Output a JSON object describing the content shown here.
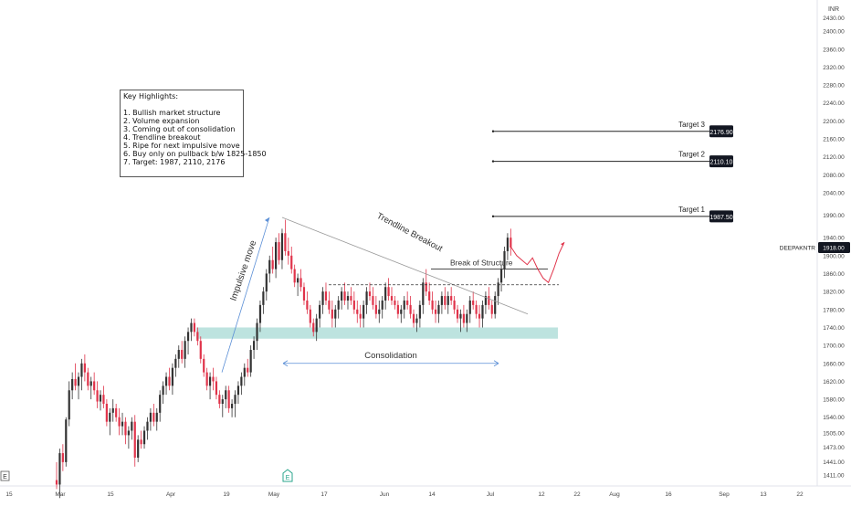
{
  "chart_data": {
    "type": "candlestick",
    "currency": "INR",
    "symbol": "DEEPAKNTR",
    "last_price": "1918.00",
    "price_scale_ticks": [
      "1411.00",
      "1441.00",
      "1473.00",
      "1505.00",
      "1540.00",
      "1580.00",
      "1620.00",
      "1660.00",
      "1700.00",
      "1740.00",
      "1780.00",
      "1820.00",
      "1860.00",
      "1900.00",
      "1940.00",
      "1990.00",
      "2040.00",
      "2080.00",
      "2120.00",
      "2160.00",
      "2200.00",
      "2240.00",
      "2280.00",
      "2320.00",
      "2360.00",
      "2400.00",
      "2430.00"
    ],
    "time_axis_labels": [
      "15",
      "Mar",
      "15",
      "Apr",
      "19",
      "May",
      "17",
      "Jun",
      "14",
      "Jul",
      "12",
      "22",
      "Aug",
      "16",
      "Sep",
      "13",
      "22"
    ],
    "ylim": [
      1395,
      2445
    ],
    "candles": [
      [
        1400,
        1380,
        1440,
        1390
      ],
      [
        1390,
        1360,
        1470,
        1460
      ],
      [
        1460,
        1420,
        1480,
        1440
      ],
      [
        1440,
        1430,
        1540,
        1535
      ],
      [
        1535,
        1520,
        1620,
        1600
      ],
      [
        1600,
        1580,
        1640,
        1625
      ],
      [
        1625,
        1600,
        1660,
        1610
      ],
      [
        1610,
        1580,
        1640,
        1630
      ],
      [
        1630,
        1600,
        1670,
        1660
      ],
      [
        1660,
        1620,
        1680,
        1640
      ],
      [
        1640,
        1600,
        1650,
        1610
      ],
      [
        1610,
        1580,
        1630,
        1620
      ],
      [
        1620,
        1590,
        1640,
        1600
      ],
      [
        1600,
        1560,
        1620,
        1575
      ],
      [
        1575,
        1555,
        1600,
        1590
      ],
      [
        1590,
        1560,
        1610,
        1570
      ],
      [
        1570,
        1520,
        1580,
        1530
      ],
      [
        1530,
        1500,
        1560,
        1550
      ],
      [
        1550,
        1530,
        1580,
        1560
      ],
      [
        1560,
        1530,
        1570,
        1540
      ],
      [
        1540,
        1500,
        1560,
        1520
      ],
      [
        1520,
        1500,
        1550,
        1530
      ],
      [
        1530,
        1480,
        1540,
        1500
      ],
      [
        1500,
        1470,
        1520,
        1510
      ],
      [
        1510,
        1490,
        1540,
        1530
      ],
      [
        1530,
        1430,
        1545,
        1450
      ],
      [
        1450,
        1440,
        1500,
        1490
      ],
      [
        1490,
        1470,
        1510,
        1480
      ],
      [
        1480,
        1470,
        1520,
        1510
      ],
      [
        1510,
        1490,
        1540,
        1530
      ],
      [
        1530,
        1510,
        1560,
        1550
      ],
      [
        1550,
        1520,
        1570,
        1530
      ],
      [
        1530,
        1510,
        1560,
        1550
      ],
      [
        1550,
        1530,
        1600,
        1590
      ],
      [
        1590,
        1570,
        1620,
        1610
      ],
      [
        1610,
        1590,
        1640,
        1630
      ],
      [
        1630,
        1600,
        1650,
        1610
      ],
      [
        1610,
        1590,
        1660,
        1650
      ],
      [
        1650,
        1630,
        1680,
        1670
      ],
      [
        1670,
        1650,
        1700,
        1690
      ],
      [
        1690,
        1660,
        1710,
        1670
      ],
      [
        1670,
        1650,
        1720,
        1710
      ],
      [
        1710,
        1680,
        1740,
        1730
      ],
      [
        1730,
        1710,
        1760,
        1750
      ],
      [
        1750,
        1720,
        1760,
        1730
      ],
      [
        1730,
        1700,
        1740,
        1710
      ],
      [
        1710,
        1660,
        1720,
        1670
      ],
      [
        1670,
        1630,
        1680,
        1640
      ],
      [
        1640,
        1600,
        1650,
        1610
      ],
      [
        1610,
        1580,
        1640,
        1630
      ],
      [
        1630,
        1600,
        1650,
        1620
      ],
      [
        1620,
        1580,
        1630,
        1590
      ],
      [
        1590,
        1560,
        1600,
        1570
      ],
      [
        1570,
        1540,
        1590,
        1580
      ],
      [
        1580,
        1560,
        1610,
        1600
      ],
      [
        1600,
        1550,
        1610,
        1560
      ],
      [
        1560,
        1540,
        1580,
        1570
      ],
      [
        1570,
        1540,
        1600,
        1590
      ],
      [
        1590,
        1570,
        1620,
        1610
      ],
      [
        1610,
        1590,
        1640,
        1630
      ],
      [
        1630,
        1610,
        1660,
        1650
      ],
      [
        1650,
        1630,
        1670,
        1640
      ],
      [
        1640,
        1630,
        1700,
        1690
      ],
      [
        1690,
        1670,
        1720,
        1710
      ],
      [
        1710,
        1690,
        1760,
        1750
      ],
      [
        1750,
        1730,
        1800,
        1790
      ],
      [
        1790,
        1770,
        1830,
        1820
      ],
      [
        1820,
        1800,
        1870,
        1860
      ],
      [
        1860,
        1840,
        1900,
        1890
      ],
      [
        1890,
        1860,
        1920,
        1870
      ],
      [
        1870,
        1850,
        1940,
        1930
      ],
      [
        1930,
        1880,
        1950,
        1890
      ],
      [
        1890,
        1870,
        1960,
        1950
      ],
      [
        1950,
        1900,
        1980,
        1910
      ],
      [
        1910,
        1880,
        1940,
        1900
      ],
      [
        1900,
        1860,
        1920,
        1870
      ],
      [
        1870,
        1830,
        1880,
        1840
      ],
      [
        1840,
        1810,
        1860,
        1850
      ],
      [
        1850,
        1820,
        1870,
        1830
      ],
      [
        1830,
        1790,
        1840,
        1800
      ],
      [
        1800,
        1770,
        1820,
        1780
      ],
      [
        1780,
        1740,
        1790,
        1750
      ],
      [
        1750,
        1720,
        1760,
        1730
      ],
      [
        1730,
        1710,
        1770,
        1760
      ],
      [
        1760,
        1740,
        1800,
        1790
      ],
      [
        1790,
        1770,
        1830,
        1820
      ],
      [
        1820,
        1790,
        1840,
        1800
      ],
      [
        1800,
        1770,
        1820,
        1780
      ],
      [
        1780,
        1740,
        1800,
        1760
      ],
      [
        1760,
        1740,
        1790,
        1780
      ],
      [
        1780,
        1760,
        1810,
        1800
      ],
      [
        1800,
        1780,
        1830,
        1820
      ],
      [
        1820,
        1790,
        1840,
        1800
      ],
      [
        1800,
        1780,
        1820,
        1810
      ],
      [
        1810,
        1790,
        1830,
        1800
      ],
      [
        1800,
        1770,
        1820,
        1780
      ],
      [
        1780,
        1750,
        1800,
        1770
      ],
      [
        1770,
        1740,
        1790,
        1760
      ],
      [
        1760,
        1740,
        1800,
        1790
      ],
      [
        1790,
        1770,
        1830,
        1820
      ],
      [
        1820,
        1800,
        1840,
        1810
      ],
      [
        1810,
        1780,
        1830,
        1790
      ],
      [
        1790,
        1760,
        1810,
        1770
      ],
      [
        1770,
        1750,
        1800,
        1780
      ],
      [
        1780,
        1760,
        1810,
        1800
      ],
      [
        1800,
        1780,
        1840,
        1830
      ],
      [
        1830,
        1800,
        1850,
        1810
      ],
      [
        1810,
        1790,
        1830,
        1800
      ],
      [
        1800,
        1780,
        1810,
        1790
      ],
      [
        1790,
        1760,
        1800,
        1770
      ],
      [
        1770,
        1750,
        1790,
        1780
      ],
      [
        1780,
        1760,
        1810,
        1800
      ],
      [
        1800,
        1780,
        1820,
        1790
      ],
      [
        1790,
        1760,
        1810,
        1770
      ],
      [
        1770,
        1740,
        1780,
        1750
      ],
      [
        1750,
        1730,
        1770,
        1760
      ],
      [
        1760,
        1740,
        1800,
        1790
      ],
      [
        1790,
        1770,
        1850,
        1840
      ],
      [
        1840,
        1810,
        1870,
        1820
      ],
      [
        1820,
        1790,
        1840,
        1800
      ],
      [
        1800,
        1770,
        1820,
        1780
      ],
      [
        1780,
        1750,
        1800,
        1770
      ],
      [
        1770,
        1750,
        1800,
        1790
      ],
      [
        1790,
        1770,
        1820,
        1810
      ],
      [
        1810,
        1780,
        1830,
        1790
      ],
      [
        1790,
        1770,
        1820,
        1810
      ],
      [
        1810,
        1790,
        1830,
        1800
      ],
      [
        1800,
        1770,
        1810,
        1780
      ],
      [
        1780,
        1750,
        1790,
        1760
      ],
      [
        1760,
        1730,
        1780,
        1770
      ],
      [
        1770,
        1740,
        1790,
        1750
      ],
      [
        1750,
        1730,
        1780,
        1770
      ],
      [
        1770,
        1750,
        1810,
        1800
      ],
      [
        1800,
        1780,
        1820,
        1790
      ],
      [
        1790,
        1760,
        1800,
        1770
      ],
      [
        1770,
        1740,
        1790,
        1760
      ],
      [
        1760,
        1740,
        1800,
        1790
      ],
      [
        1790,
        1770,
        1820,
        1810
      ],
      [
        1810,
        1780,
        1830,
        1790
      ],
      [
        1790,
        1760,
        1800,
        1770
      ],
      [
        1770,
        1760,
        1820,
        1810
      ],
      [
        1810,
        1790,
        1850,
        1840
      ],
      [
        1840,
        1820,
        1880,
        1870
      ],
      [
        1870,
        1850,
        1920,
        1910
      ],
      [
        1910,
        1890,
        1950,
        1940
      ],
      [
        1940,
        1900,
        1960,
        1918
      ]
    ],
    "zones": [
      {
        "type": "demand",
        "y_range": [
          1715,
          1740
        ]
      }
    ],
    "levels": [
      {
        "label": "Target 1",
        "value": "1987.50"
      },
      {
        "label": "Target 2",
        "value": "2110.10"
      },
      {
        "label": "Target 3",
        "value": "2176.90"
      }
    ],
    "annotations": {
      "impulsive_move": "Impulsive move",
      "trendline_breakout": "Trendline Breakout",
      "break_of_structure": "Break of Structure",
      "consolidation": "Consolidation",
      "earnings_marker": "E"
    },
    "projection_path": [
      [
        1918,
        1900,
        1890,
        1880,
        1895,
        1870,
        1850,
        1840,
        1870,
        1905,
        1930
      ]
    ]
  },
  "highlights": {
    "title": "Key Highlights:",
    "items": [
      "1. Bullish market structure",
      "2. Volume expansion",
      "3. Coming out of consolidation",
      "4. Trendline breakout",
      "5. Ripe for next impulsive move",
      "6. Buy only on pullback b/w 1825-1850",
      "7. Target: 1987, 2110, 2176"
    ]
  },
  "colors": {
    "up": "#333333",
    "down": "#e0334a",
    "zone": "#bde3df",
    "projection": "#e0334a",
    "arrow": "#5b8fd6",
    "price_badge": "#131722"
  }
}
